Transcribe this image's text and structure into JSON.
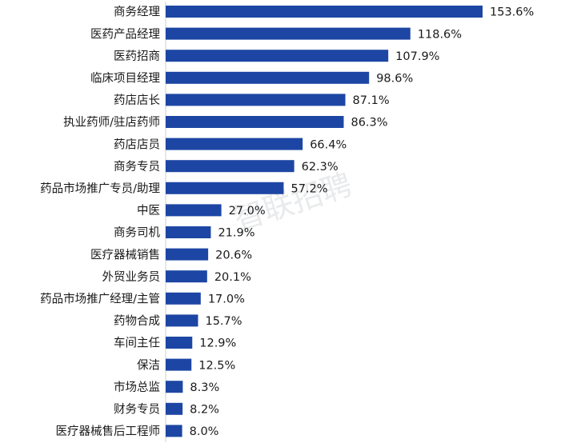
{
  "chart_data": {
    "type": "bar",
    "orientation": "horizontal",
    "categories": [
      "商务经理",
      "医药产品经理",
      "医药招商",
      "临床项目经理",
      "药店店长",
      "执业药师/驻店药师",
      "药店店员",
      "商务专员",
      "药品市场推广专员/助理",
      "中医",
      "商务司机",
      "医疗器械销售",
      "外贸业务员",
      "药品市场推广经理/主管",
      "药物合成",
      "车间主任",
      "保洁",
      "市场总监",
      "财务专员",
      "医疗器械售后工程师"
    ],
    "values": [
      153.6,
      118.6,
      107.9,
      98.6,
      87.1,
      86.3,
      66.4,
      62.3,
      57.2,
      27.0,
      21.9,
      20.6,
      20.1,
      17.0,
      15.7,
      12.9,
      12.5,
      8.3,
      8.2,
      8.0
    ],
    "value_labels": [
      "153.6%",
      "118.6%",
      "107.9%",
      "98.6%",
      "87.1%",
      "86.3%",
      "66.4%",
      "62.3%",
      "57.2%",
      "27.0%",
      "21.9%",
      "20.6%",
      "20.1%",
      "17.0%",
      "15.7%",
      "12.9%",
      "12.5%",
      "8.3%",
      "8.2%",
      "8.0%"
    ],
    "unit": "%",
    "title": "",
    "xlabel": "",
    "ylabel": "",
    "xlim": [
      0,
      153.6
    ],
    "grid": false,
    "legend": "none",
    "bar_color": "#1d46a4",
    "axis_color": "#cfcfcf"
  },
  "watermark": {
    "text": "智联招聘"
  }
}
